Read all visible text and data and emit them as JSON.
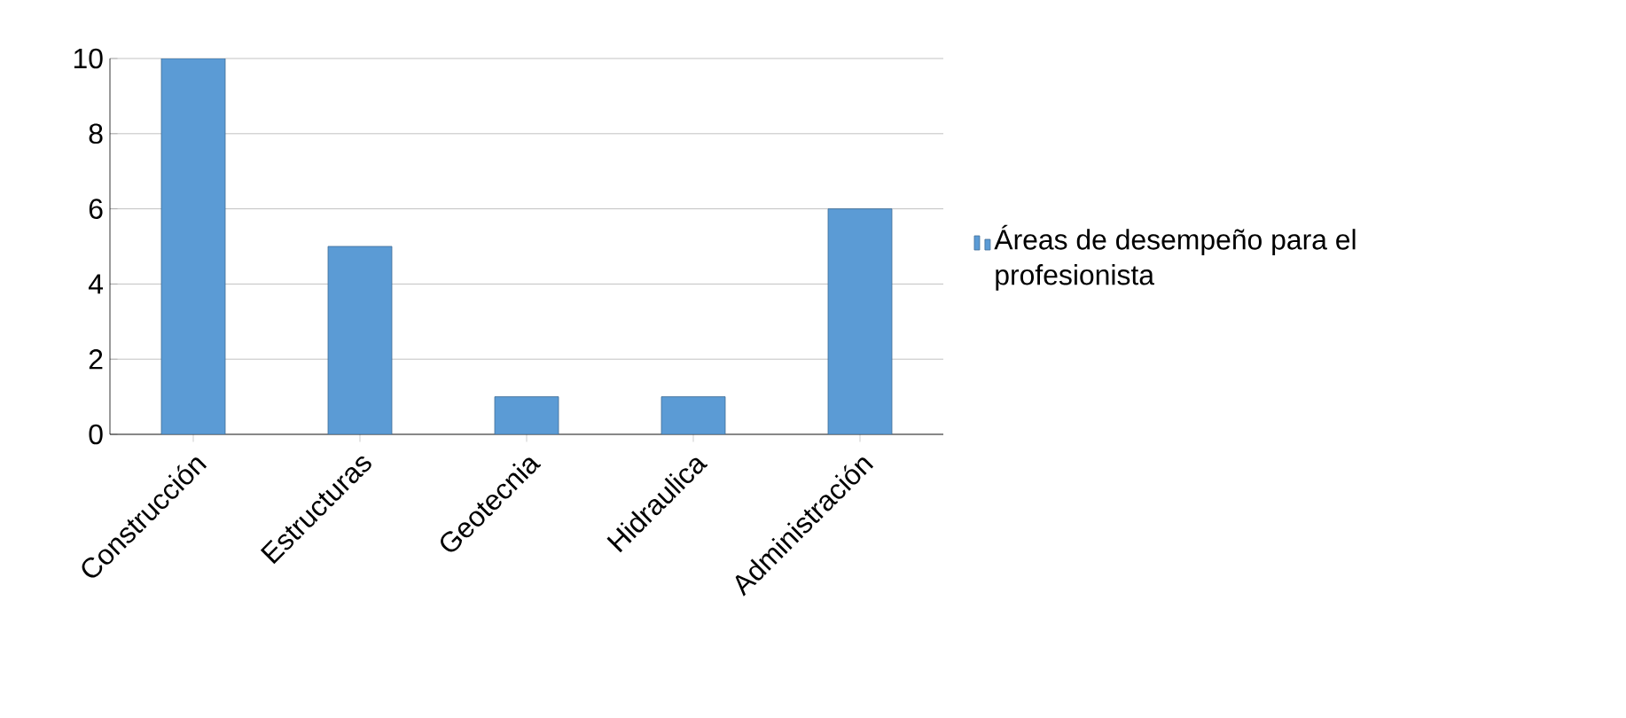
{
  "chart_data": {
    "type": "bar",
    "categories": [
      "Construcción",
      "Estructuras",
      "Geotecnia",
      "Hidraulica",
      "Administración"
    ],
    "series": [
      {
        "name": "Áreas de desempeño para el profesionista",
        "color": "#5b9bd5",
        "values": [
          10,
          5,
          1,
          1,
          6
        ]
      }
    ],
    "ylim": [
      0,
      10
    ],
    "yticks": [
      0,
      2,
      4,
      6,
      8,
      10
    ],
    "grid": "y",
    "legend": "right"
  }
}
